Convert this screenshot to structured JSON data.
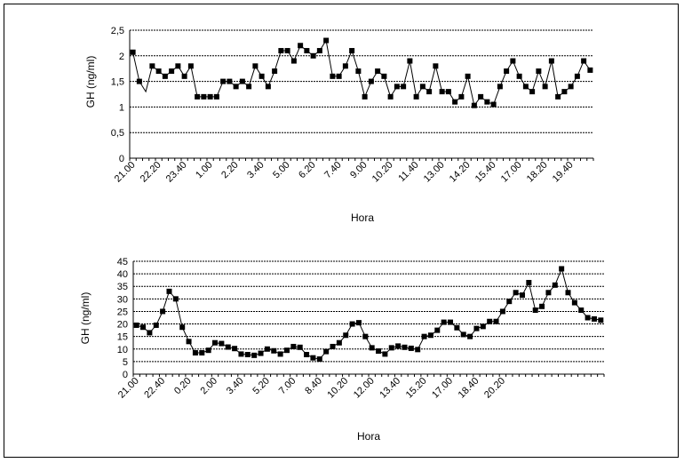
{
  "chart_data": [
    {
      "type": "line",
      "title": "",
      "xlabel": "Hora",
      "ylabel": "GH (ng/ml)",
      "ylim": [
        0,
        2.5
      ],
      "yticks": [
        "0",
        "0,5",
        "1",
        "1,5",
        "2",
        "2,5"
      ],
      "grid": "horizontal",
      "marker": "square",
      "x_tick_labels": [
        "21.00",
        "22.20",
        "23.40",
        "1.00",
        "2.20",
        "3.40",
        "5.00",
        "6.20",
        "7.40",
        "9.00",
        "10.20",
        "11.40",
        "13.00",
        "14.20",
        "15.40",
        "17.00",
        "18.20",
        "19.40"
      ],
      "series": [
        {
          "values": [
            2.07,
            1.5,
            1.3,
            1.8,
            1.7,
            1.6,
            1.7,
            1.8,
            1.6,
            1.8,
            1.2,
            1.2,
            1.2,
            1.2,
            1.5,
            1.5,
            1.4,
            1.5,
            1.4,
            1.8,
            1.6,
            1.4,
            1.7,
            2.1,
            2.1,
            1.9,
            2.2,
            2.1,
            2.0,
            2.1,
            2.3,
            1.6,
            1.6,
            1.8,
            2.1,
            1.7,
            1.2,
            1.5,
            1.7,
            1.6,
            1.2,
            1.4,
            1.4,
            1.9,
            1.2,
            1.4,
            1.3,
            1.8,
            1.3,
            1.3,
            1.1,
            1.2,
            1.6,
            1.03,
            1.2,
            1.1,
            1.05,
            1.4,
            1.7,
            1.9,
            1.6,
            1.4,
            1.3,
            1.7,
            1.4,
            1.9,
            1.2,
            1.3,
            1.4,
            1.6,
            1.9,
            1.72
          ],
          "markers": [
            true,
            true,
            false,
            true,
            true,
            true,
            true,
            true,
            true,
            true,
            true,
            true,
            true,
            true,
            true,
            true,
            true,
            true,
            true,
            true,
            true,
            true,
            true,
            true,
            true,
            true,
            true,
            true,
            true,
            true,
            true,
            true,
            true,
            true,
            true,
            true,
            true,
            true,
            true,
            true,
            true,
            true,
            true,
            true,
            true,
            true,
            true,
            true,
            true,
            true,
            true,
            true,
            true,
            true,
            true,
            true,
            true,
            true,
            true,
            true,
            true,
            true,
            true,
            true,
            true,
            true,
            true,
            true,
            true,
            true,
            true,
            true
          ]
        }
      ]
    },
    {
      "type": "line",
      "title": "",
      "xlabel": "Hora",
      "ylabel": "GH (ng/ml)",
      "ylim": [
        0,
        45
      ],
      "yticks": [
        "0",
        "5",
        "10",
        "15",
        "20",
        "25",
        "30",
        "35",
        "40",
        "45"
      ],
      "grid": "horizontal",
      "marker": "square",
      "x_tick_labels": [
        "21.00",
        "22.40",
        "0.20",
        "2.00",
        "3.40",
        "5.20",
        "7.00",
        "8.40",
        "10.20",
        "12.00",
        "13.40",
        "15.20",
        "17.00",
        "18.40",
        "20.20"
      ],
      "series": [
        {
          "values": [
            19.5,
            18.7,
            16.5,
            19.5,
            25,
            33,
            30,
            18.7,
            13,
            8.5,
            8.5,
            9.5,
            12.5,
            12.2,
            10.8,
            10.2,
            8,
            7.8,
            7.5,
            8.3,
            10,
            9.3,
            8,
            9.5,
            11,
            10.7,
            7.8,
            6.5,
            6,
            9,
            11,
            12.5,
            15.5,
            20,
            20.5,
            15,
            10.5,
            9.2,
            8,
            10.5,
            11.2,
            10.7,
            10.3,
            9.8,
            15,
            15.5,
            17.5,
            20.7,
            20.7,
            18.5,
            15.8,
            15,
            18.2,
            19,
            21,
            21,
            25,
            29,
            32.5,
            31.5,
            36.5,
            25.5,
            27,
            32.5,
            35.5,
            42,
            32.5,
            28.5,
            25.5,
            22.5,
            22,
            21.5
          ]
        }
      ]
    }
  ]
}
